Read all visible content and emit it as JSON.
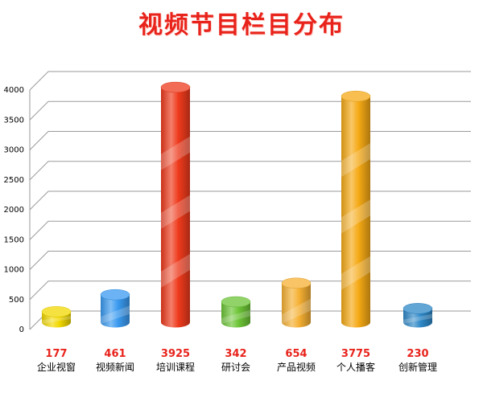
{
  "chart_data": {
    "type": "bar",
    "title": "视频节目栏目分布",
    "categories": [
      "企业视窗",
      "视频新闻",
      "培训课程",
      "研讨会",
      "产品视频",
      "个人播客",
      "创新管理"
    ],
    "values": [
      177,
      461,
      3925,
      342,
      654,
      3775,
      230
    ],
    "value_labels": [
      "177",
      "461",
      "3925",
      "342",
      "654",
      "3775",
      "230"
    ],
    "ylim": [
      0,
      4000
    ],
    "yticks": [
      "0",
      "500",
      "1000",
      "1500",
      "2000",
      "2500",
      "3000",
      "3500",
      "4000"
    ],
    "grid": true,
    "colors": {
      "企业视窗": "#f2d800",
      "视频新闻": "#3a9af0",
      "培训课程": "#ee3a1c",
      "研讨会": "#6cc436",
      "产品视频": "#f6b033",
      "个人播客": "#f5a915",
      "创新管理": "#2e88c8"
    },
    "value_label_color": "#e8231b"
  }
}
